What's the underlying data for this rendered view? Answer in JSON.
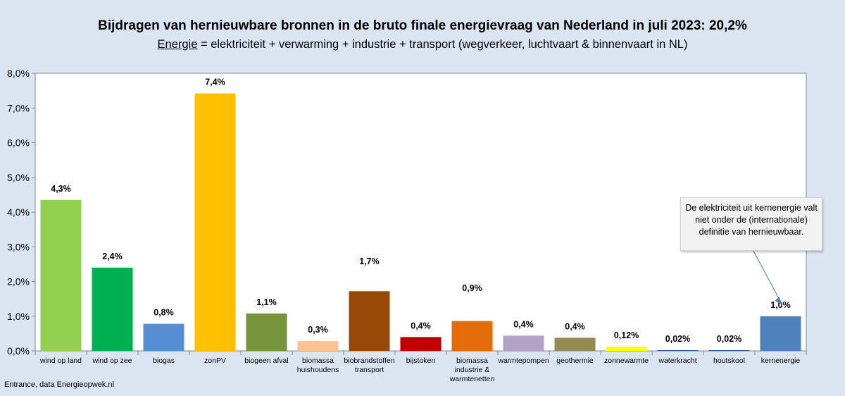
{
  "header": {
    "title": "Bijdragen van hernieuwbare bronnen in de bruto finale energievraag van Nederland in juli 2023: 20,2%",
    "subtitle_underlined": "Energie",
    "subtitle_rest": " = elektriciteit + verwarming + industrie + transport  (wegverkeer, luchtvaart & binnenvaart in NL)"
  },
  "source": "Entrance, data Energieopwek.nl",
  "callout": "De elektriciteit uit kernenergie valt niet onder de (internationale) definitie van hernieuwbaar.",
  "chart_data": {
    "type": "bar",
    "title": "Bijdragen van hernieuwbare bronnen in de bruto finale energievraag van Nederland in juli 2023: 20,2%",
    "ylim": [
      0,
      8
    ],
    "yticks": [
      "0,0%",
      "1,0%",
      "2,0%",
      "3,0%",
      "4,0%",
      "5,0%",
      "6,0%",
      "7,0%",
      "8,0%"
    ],
    "grid": false,
    "categories": [
      "wind op land",
      "wind op zee",
      "biogas",
      "zonPV",
      "biogeen afval",
      "biomassa huishoudens",
      "biobrandstoffen transport",
      "bijstoken",
      "biomassa industrie & warmtenetten",
      "warmtepompen",
      "geothermie",
      "zonnewarmte",
      "waterkracht",
      "houtskool",
      "kernenergie"
    ],
    "category_lines": [
      [
        "wind op land"
      ],
      [
        "wind op zee"
      ],
      [
        "biogas"
      ],
      [
        "zonPV"
      ],
      [
        "biogeen afval"
      ],
      [
        "biomassa",
        "huishoudens"
      ],
      [
        "biobrandstoffen",
        "transport"
      ],
      [
        "bijstoken"
      ],
      [
        "biomassa",
        "industrie &",
        "warmtenetten"
      ],
      [
        "warmtepompen"
      ],
      [
        "geothermie"
      ],
      [
        "zonnewarmte"
      ],
      [
        "waterkracht"
      ],
      [
        "houtskool"
      ],
      [
        "kernenergie"
      ]
    ],
    "values": [
      4.35,
      2.4,
      0.78,
      7.42,
      1.08,
      0.28,
      1.72,
      0.4,
      0.86,
      0.44,
      0.38,
      0.12,
      0.02,
      0.02,
      1.0
    ],
    "labels": [
      "4,3%",
      "2,4%",
      "0,8%",
      "7,4%",
      "1,1%",
      "0,3%",
      "1,7%",
      "0,4%",
      "0,9%",
      "0,4%",
      "0,4%",
      "0,12%",
      "0,02%",
      "0,02%",
      "1,0%"
    ],
    "label_values": [
      4.35,
      2.4,
      0.78,
      7.42,
      1.08,
      0.28,
      2.25,
      0.4,
      1.48,
      0.44,
      0.38,
      0.12,
      0.02,
      0.02,
      1.0
    ],
    "colors": [
      "#92d050",
      "#00b050",
      "#558ed5",
      "#ffc000",
      "#77933c",
      "#fac090",
      "#984807",
      "#c00000",
      "#e46c0a",
      "#b3a2c7",
      "#948a54",
      "#ffff00",
      "#1f497d",
      "#1f497d",
      "#4f81bd"
    ]
  }
}
